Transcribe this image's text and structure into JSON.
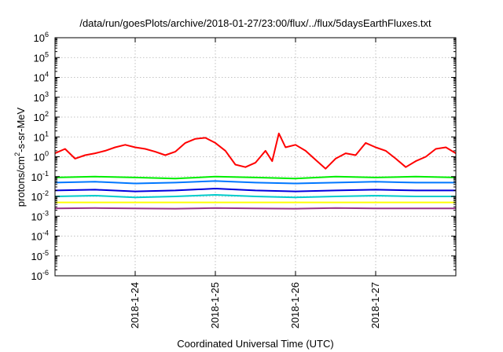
{
  "chart_data": {
    "type": "line",
    "title": "/data/run/goesPlots/archive/2018-01-27/23:00/flux/../flux/5daysEarthFluxes.txt",
    "xlabel": "Coordinated Universal Time (UTC)",
    "ylabel_parts": {
      "base": "protons/cm",
      "sup": "2",
      "rest": "-s-sr-MeV"
    },
    "y_scale": "log",
    "ylim": [
      1e-06,
      1000000.0
    ],
    "y_ticks": [
      {
        "exp": "-6",
        "value": 1e-06
      },
      {
        "exp": "-5",
        "value": 1e-05
      },
      {
        "exp": "-4",
        "value": 0.0001
      },
      {
        "exp": "-3",
        "value": 0.001
      },
      {
        "exp": "-2",
        "value": 0.01
      },
      {
        "exp": "-1",
        "value": 0.1
      },
      {
        "exp": "0",
        "value": 1
      },
      {
        "exp": "1",
        "value": 10
      },
      {
        "exp": "2",
        "value": 100
      },
      {
        "exp": "3",
        "value": 1000
      },
      {
        "exp": "4",
        "value": 10000
      },
      {
        "exp": "5",
        "value": 100000
      },
      {
        "exp": "6",
        "value": 1000000
      }
    ],
    "xlim": [
      "2018-01-23T00:00",
      "2018-01-28T00:00"
    ],
    "x_ticks": [
      {
        "label": "2018-1-24",
        "time": "2018-01-24T00:00"
      },
      {
        "label": "2018-1-25",
        "time": "2018-01-25T00:00"
      },
      {
        "label": "2018-1-26",
        "time": "2018-01-26T00:00"
      },
      {
        "label": "2018-1-27",
        "time": "2018-01-27T00:00"
      }
    ],
    "grid": true,
    "series": [
      {
        "color": "#ff0000",
        "x": [
          "2018-01-23T00:00",
          "2018-01-23T03:00",
          "2018-01-23T06:00",
          "2018-01-23T09:00",
          "2018-01-23T12:00",
          "2018-01-23T15:00",
          "2018-01-23T18:00",
          "2018-01-23T21:00",
          "2018-01-24T00:00",
          "2018-01-24T03:00",
          "2018-01-24T06:00",
          "2018-01-24T09:00",
          "2018-01-24T12:00",
          "2018-01-24T15:00",
          "2018-01-24T18:00",
          "2018-01-24T21:00",
          "2018-01-25T00:00",
          "2018-01-25T03:00",
          "2018-01-25T06:00",
          "2018-01-25T09:00",
          "2018-01-25T12:00",
          "2018-01-25T15:00",
          "2018-01-25T17:00",
          "2018-01-25T19:00",
          "2018-01-25T21:00",
          "2018-01-26T00:00",
          "2018-01-26T03:00",
          "2018-01-26T06:00",
          "2018-01-26T09:00",
          "2018-01-26T12:00",
          "2018-01-26T15:00",
          "2018-01-26T18:00",
          "2018-01-26T21:00",
          "2018-01-27T00:00",
          "2018-01-27T03:00",
          "2018-01-27T06:00",
          "2018-01-27T09:00",
          "2018-01-27T12:00",
          "2018-01-27T15:00",
          "2018-01-27T18:00",
          "2018-01-27T21:00",
          "2018-01-28T00:00"
        ],
        "y": [
          1.5,
          2.5,
          0.8,
          1.2,
          1.5,
          2.0,
          3.0,
          4.0,
          3.0,
          2.5,
          1.8,
          1.2,
          1.8,
          5.0,
          8.0,
          9.0,
          5.0,
          2.0,
          0.4,
          0.3,
          0.5,
          2.0,
          0.6,
          15.0,
          3.0,
          4.0,
          2.0,
          0.7,
          0.25,
          0.8,
          1.5,
          1.2,
          5.0,
          3.0,
          2.0,
          0.8,
          0.3,
          0.6,
          1.0,
          2.5,
          3.0,
          1.5
        ]
      },
      {
        "color": "#00ee00",
        "x": [
          "2018-01-23T00:00",
          "2018-01-23T12:00",
          "2018-01-24T00:00",
          "2018-01-24T12:00",
          "2018-01-25T00:00",
          "2018-01-25T12:00",
          "2018-01-26T00:00",
          "2018-01-26T12:00",
          "2018-01-27T00:00",
          "2018-01-27T12:00",
          "2018-01-28T00:00"
        ],
        "y": [
          0.09,
          0.1,
          0.09,
          0.08,
          0.1,
          0.09,
          0.08,
          0.1,
          0.09,
          0.1,
          0.09
        ]
      },
      {
        "color": "#0077ff",
        "x": [
          "2018-01-23T00:00",
          "2018-01-23T12:00",
          "2018-01-24T00:00",
          "2018-01-24T12:00",
          "2018-01-25T00:00",
          "2018-01-25T12:00",
          "2018-01-26T00:00",
          "2018-01-26T12:00",
          "2018-01-27T00:00",
          "2018-01-27T12:00",
          "2018-01-28T00:00"
        ],
        "y": [
          0.05,
          0.055,
          0.045,
          0.05,
          0.06,
          0.05,
          0.045,
          0.05,
          0.055,
          0.05,
          0.05
        ]
      },
      {
        "color": "#00cccc",
        "x": [
          "2018-01-23T00:00",
          "2018-01-23T12:00",
          "2018-01-24T00:00",
          "2018-01-24T12:00",
          "2018-01-25T00:00",
          "2018-01-25T12:00",
          "2018-01-26T00:00",
          "2018-01-26T12:00",
          "2018-01-27T00:00",
          "2018-01-27T12:00",
          "2018-01-28T00:00"
        ],
        "y": [
          0.01,
          0.011,
          0.009,
          0.01,
          0.012,
          0.01,
          0.009,
          0.01,
          0.011,
          0.01,
          0.01
        ]
      },
      {
        "color": "#0000dd",
        "x": [
          "2018-01-23T00:00",
          "2018-01-23T12:00",
          "2018-01-24T00:00",
          "2018-01-24T12:00",
          "2018-01-25T00:00",
          "2018-01-25T12:00",
          "2018-01-26T00:00",
          "2018-01-26T12:00",
          "2018-01-27T00:00",
          "2018-01-27T12:00",
          "2018-01-28T00:00"
        ],
        "y": [
          0.02,
          0.022,
          0.018,
          0.02,
          0.025,
          0.02,
          0.018,
          0.02,
          0.022,
          0.02,
          0.02
        ]
      },
      {
        "color": "#ffff00",
        "x": [
          "2018-01-23T00:00",
          "2018-01-24T00:00",
          "2018-01-25T00:00",
          "2018-01-26T00:00",
          "2018-01-27T00:00",
          "2018-01-28T00:00"
        ],
        "y": [
          0.005,
          0.005,
          0.005,
          0.005,
          0.005,
          0.005
        ]
      },
      {
        "color": "#993388",
        "x": [
          "2018-01-23T00:00",
          "2018-01-23T12:00",
          "2018-01-24T00:00",
          "2018-01-24T12:00",
          "2018-01-25T00:00",
          "2018-01-25T12:00",
          "2018-01-26T00:00",
          "2018-01-26T12:00",
          "2018-01-27T00:00",
          "2018-01-27T12:00",
          "2018-01-28T00:00"
        ],
        "y": [
          0.0025,
          0.0026,
          0.0025,
          0.0024,
          0.0026,
          0.0025,
          0.0024,
          0.0026,
          0.0025,
          0.0025,
          0.0025
        ]
      }
    ]
  }
}
